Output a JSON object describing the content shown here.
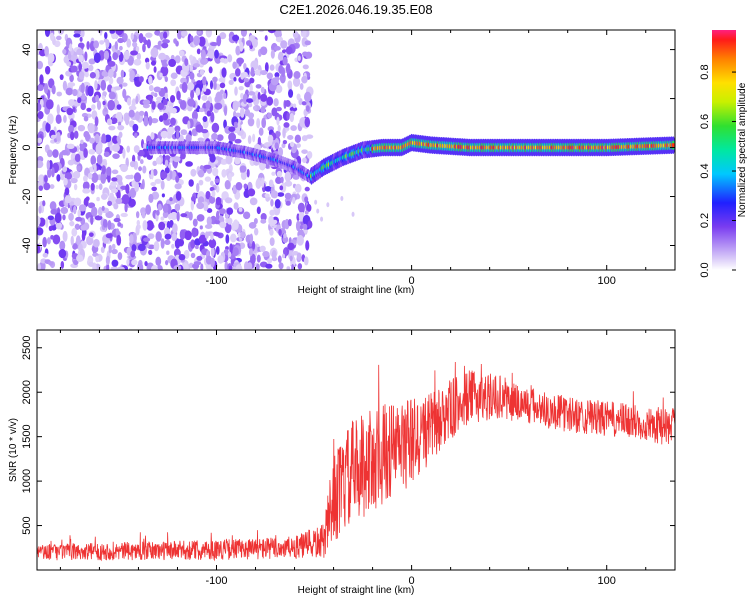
{
  "title": "C2E1.2026.046.19.35.E08",
  "chart_data": [
    {
      "type": "heatmap",
      "name": "spectrogram",
      "xlabel": "Height of straight line (km)",
      "ylabel": "Frequency (Hz)",
      "xlim": [
        -192,
        135
      ],
      "ylim": [
        -50,
        48
      ],
      "xticks": [
        -100,
        0,
        100
      ],
      "xtick_labels": [
        "-100",
        "0",
        "100"
      ],
      "yticks": [
        -40,
        -20,
        0,
        20,
        40
      ],
      "ytick_labels": [
        "-40",
        "-20",
        "0",
        "20",
        "40"
      ],
      "noise_region_end_km": -52,
      "signal_ridge": {
        "x": [
          -135,
          -120,
          -100,
          -85,
          -70,
          -60,
          -52,
          -45,
          -35,
          -25,
          -15,
          -5,
          0,
          10,
          30,
          60,
          100,
          135
        ],
        "y": [
          0,
          0,
          0,
          -2,
          -5,
          -8,
          -12,
          -8,
          -4,
          -1,
          0,
          0,
          2,
          1,
          0,
          0,
          0,
          1
        ]
      },
      "colorbar": {
        "label": "Normalized spectral amplitude",
        "range": [
          0.0,
          0.97
        ],
        "ticks": [
          0.0,
          0.2,
          0.4,
          0.6,
          0.8
        ],
        "tick_labels": [
          "0.0",
          "0.2",
          "0.4",
          "0.6",
          "0.8"
        ]
      }
    },
    {
      "type": "line",
      "name": "snr",
      "xlabel": "Height of straight line (km)",
      "ylabel": "SNR (10 * v/v)",
      "xlim": [
        -192,
        135
      ],
      "ylim": [
        0,
        2700
      ],
      "xticks": [
        -100,
        0,
        100
      ],
      "xtick_labels": [
        "-100",
        "0",
        "100"
      ],
      "yticks": [
        500,
        1000,
        1500,
        2000,
        2500
      ],
      "ytick_labels": [
        "500",
        "1000",
        "1500",
        "2000",
        "2500"
      ],
      "color": "#ee3333",
      "envelope": {
        "x": [
          -192,
          -120,
          -60,
          -45,
          -40,
          -30,
          -20,
          -10,
          0,
          10,
          20,
          30,
          45,
          60,
          80,
          100,
          120,
          135
        ],
        "mean": [
          200,
          220,
          250,
          320,
          800,
          1100,
          1250,
          1350,
          1450,
          1600,
          1800,
          1950,
          1950,
          1850,
          1750,
          1700,
          1650,
          1600
        ],
        "spread": [
          90,
          110,
          130,
          200,
          500,
          600,
          600,
          550,
          500,
          400,
          350,
          300,
          250,
          220,
          200,
          200,
          200,
          220
        ]
      }
    }
  ]
}
